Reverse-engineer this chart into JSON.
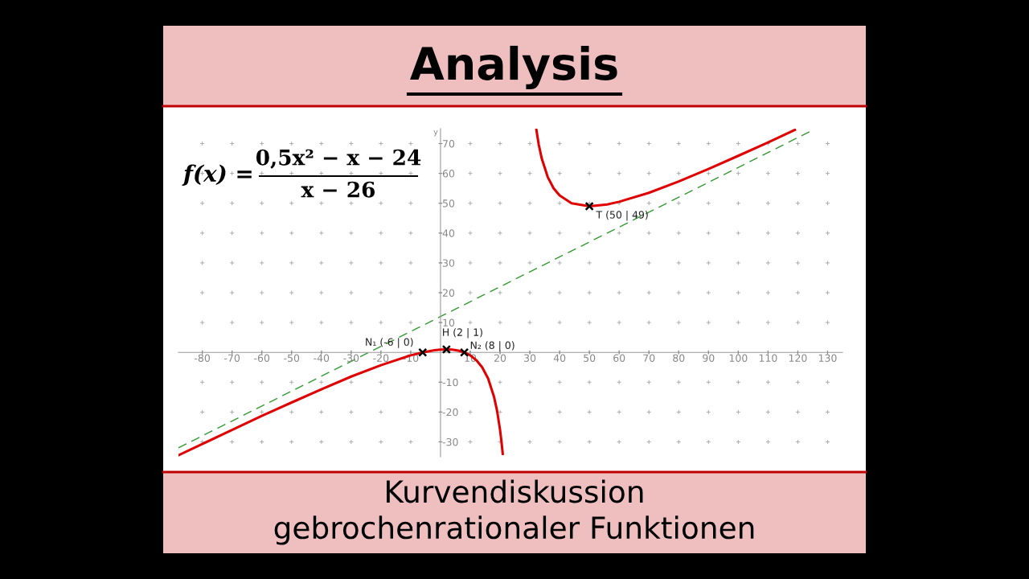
{
  "chart_data": {
    "type": "line",
    "title": "Analysis",
    "subtitle": "Kurvendiskussion\ngebrochenrationaler Funktionen",
    "ylabel": "y",
    "xlim": [
      -88,
      135
    ],
    "ylim": [
      -35,
      75
    ],
    "xticks": [
      -80,
      -70,
      -60,
      -50,
      -40,
      -30,
      -20,
      -10,
      10,
      20,
      30,
      40,
      50,
      60,
      70,
      80,
      90,
      100,
      110,
      120,
      130
    ],
    "yticks": [
      -30,
      -20,
      -10,
      10,
      20,
      30,
      40,
      50,
      60,
      70
    ],
    "grid": true,
    "legend": false,
    "marker": "none",
    "line_style": "solid",
    "series": [
      {
        "color": "#e00000",
        "x": [
          -88,
          -80,
          -70,
          -60,
          -50,
          -40,
          -30,
          -20,
          -10,
          -6,
          -2,
          0,
          2,
          4,
          6,
          8,
          10,
          12,
          14,
          16,
          18,
          19,
          20,
          20.5,
          20.9
        ],
        "values": [
          -34.5,
          -30.7,
          -26.0,
          -21.3,
          -16.8,
          -12.4,
          -8.1,
          -4.3,
          -1.0,
          0,
          0.7,
          0.9,
          1,
          0.9,
          0.6,
          0,
          -1.0,
          -2.6,
          -5.0,
          -8.8,
          -15.0,
          -19.6,
          -26.0,
          -30.1,
          -34.0
        ]
      },
      {
        "color": "#e00000",
        "x": [
          32.2,
          33,
          34,
          36,
          38,
          40,
          44,
          50,
          56,
          60,
          70,
          80,
          90,
          100,
          110,
          119
        ],
        "values": [
          74.6,
          69.6,
          65.0,
          58.8,
          55.0,
          52.6,
          50.0,
          49,
          49.6,
          50.5,
          53.5,
          57.3,
          61.5,
          65.9,
          70.4,
          74.6
        ]
      },
      {
        "color": "#339933",
        "line_style": "dashed",
        "x": [
          -88,
          124
        ],
        "values": [
          -32,
          74
        ]
      },
      {
        "type": "scatter",
        "marker": "cross",
        "color": "#000000",
        "x": [
          -6,
          2,
          8,
          50
        ],
        "values": [
          0,
          1,
          0,
          49
        ]
      }
    ],
    "annotations": [
      {
        "text": "N₁ (-6 | 0)",
        "x": -6,
        "y": 0
      },
      {
        "text": "H (2 | 1)",
        "x": 2,
        "y": 1
      },
      {
        "text": "N₂ (8 | 0)",
        "x": 8,
        "y": 0
      },
      {
        "text": "T (50 | 49)",
        "x": 50,
        "y": 49
      },
      "f(x) =",
      "0,5x² − x − 24",
      "x − 26"
    ]
  }
}
